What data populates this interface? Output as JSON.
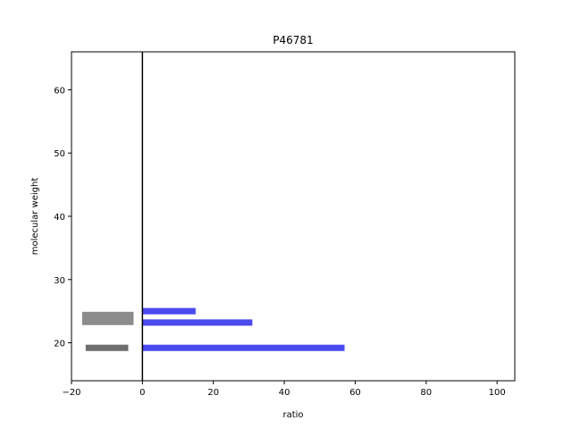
{
  "chart_data": {
    "type": "bar",
    "orientation": "horizontal",
    "title": "P46781",
    "xlabel": "ratio",
    "ylabel": "molecular weight",
    "xlim": [
      -20,
      105
    ],
    "ylim": [
      14,
      66
    ],
    "xticks": [
      -20,
      0,
      20,
      40,
      60,
      80,
      100
    ],
    "yticks": [
      20,
      30,
      40,
      50,
      60
    ],
    "reference_line_x": 0,
    "grid": false,
    "series": [
      {
        "color": "#4b4bf0",
        "bars": [
          {
            "start": 0,
            "end": 15,
            "y_low": 24.5,
            "y_high": 25.5
          },
          {
            "start": 0,
            "end": 31,
            "y_low": 22.7,
            "y_high": 23.7
          },
          {
            "start": 0,
            "end": 57,
            "y_low": 18.7,
            "y_high": 19.7
          }
        ]
      },
      {
        "color": "#8c8c8c",
        "bars": [
          {
            "start": -17,
            "end": -2.5,
            "y_low": 22.8,
            "y_high": 24.9
          }
        ]
      },
      {
        "color": "#6e6e6e",
        "bars": [
          {
            "start": -16,
            "end": -4,
            "y_low": 18.7,
            "y_high": 19.7
          }
        ]
      }
    ]
  }
}
